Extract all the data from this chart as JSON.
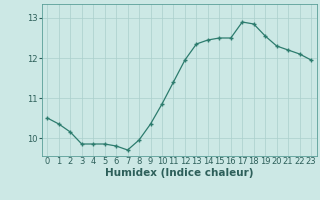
{
  "x": [
    0,
    1,
    2,
    3,
    4,
    5,
    6,
    7,
    8,
    9,
    10,
    11,
    12,
    13,
    14,
    15,
    16,
    17,
    18,
    19,
    20,
    21,
    22,
    23
  ],
  "y": [
    10.5,
    10.35,
    10.15,
    9.85,
    9.85,
    9.85,
    9.8,
    9.7,
    9.95,
    10.35,
    10.85,
    11.4,
    11.95,
    12.35,
    12.45,
    12.5,
    12.5,
    12.9,
    12.85,
    12.55,
    12.3,
    12.2,
    12.1,
    11.95
  ],
  "xlabel": "Humidex (Indice chaleur)",
  "bg_color": "#cce8e5",
  "line_color": "#2d7c6e",
  "marker_color": "#2d7c6e",
  "grid_color": "#aacfcc",
  "tick_label_color": "#2d5f5a",
  "ylim_min": 9.55,
  "ylim_max": 13.35,
  "tick_fontsize": 6.0,
  "label_fontsize": 7.5
}
